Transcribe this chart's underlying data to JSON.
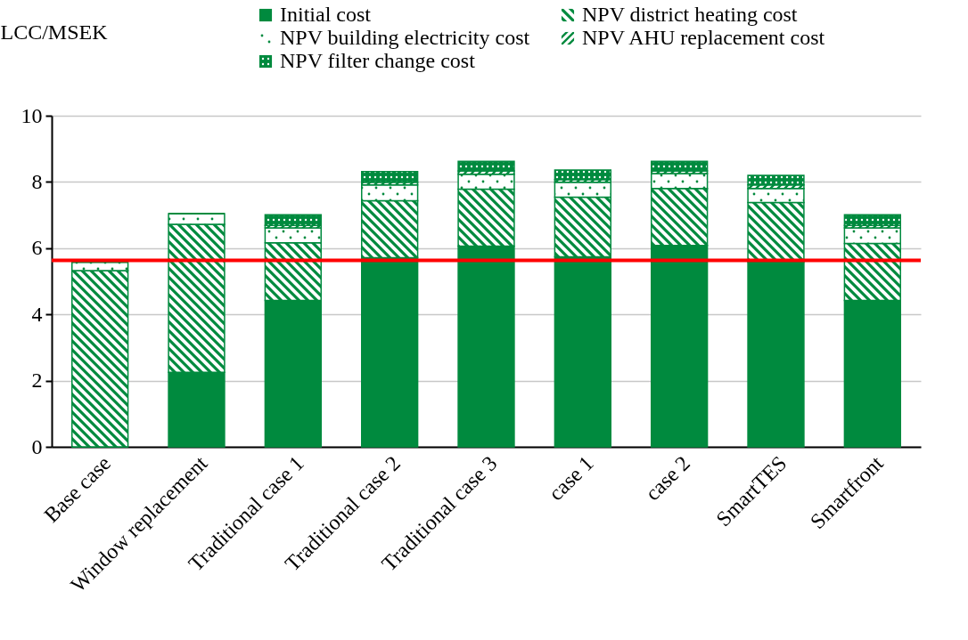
{
  "chart_data": {
    "type": "bar",
    "stacked": true,
    "ylabel": "LCC/MSEK",
    "categories": [
      "Base case",
      "Window replacement",
      "Traditional case 1",
      "Traditional case 2",
      "Traditional case 3",
      "case 1",
      "case 2",
      "SmartTES",
      "Smartfront"
    ],
    "series": [
      {
        "name": "Initial cost",
        "color": "#008a3e",
        "values": [
          0,
          2.25,
          4.42,
          5.71,
          6.06,
          5.74,
          6.08,
          5.58,
          4.42
        ]
      },
      {
        "name": "NPV district heating cost",
        "color": "#008a3e",
        "values": [
          5.32,
          4.47,
          1.74,
          1.72,
          1.72,
          1.8,
          1.72,
          1.8,
          1.72
        ]
      },
      {
        "name": "NPV building electricity cost",
        "color": "#008a3e",
        "values": [
          0.26,
          0.32,
          0.45,
          0.48,
          0.45,
          0.45,
          0.45,
          0.42,
          0.47
        ]
      },
      {
        "name": "NPV AHU replacement cost",
        "color": "#008a3e",
        "values": [
          0,
          0,
          0.08,
          0.08,
          0.1,
          0.08,
          0.08,
          0.11,
          0.08
        ]
      },
      {
        "name": "NPV filter change cost",
        "color": "#008a3e",
        "values": [
          0,
          0,
          0.32,
          0.32,
          0.29,
          0.29,
          0.29,
          0.29,
          0.32
        ]
      }
    ],
    "ylim": [
      0,
      10
    ],
    "yticks": [
      0,
      2,
      4,
      6,
      8,
      10
    ],
    "grid": "y",
    "legend": "top",
    "ref_lines": [
      {
        "axis": "y",
        "value": 5.63,
        "color": "#ff0000"
      }
    ]
  }
}
